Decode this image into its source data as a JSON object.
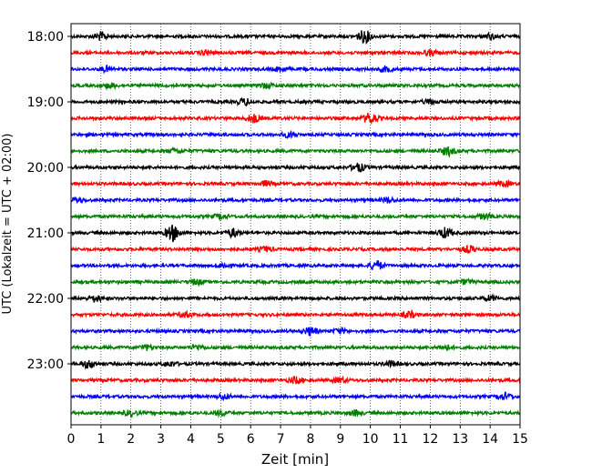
{
  "chart_data": {
    "type": "line",
    "title": "",
    "xlabel": "Zeit  [min]",
    "ylabel": "UTC (Lokalzeit = UTC + 02:00)",
    "xlim": [
      0,
      15
    ],
    "x_ticks": [
      "0",
      "1",
      "2",
      "3",
      "4",
      "5",
      "6",
      "7",
      "8",
      "9",
      "10",
      "11",
      "12",
      "13",
      "14",
      "15"
    ],
    "y_ticks": [
      "18:00",
      "19:00",
      "20:00",
      "21:00",
      "22:00",
      "23:00"
    ],
    "grid": "vertical dotted",
    "colors": [
      "#000000",
      "#ff0000",
      "#0000ff",
      "#008000"
    ],
    "traces": [
      {
        "start": "18:00",
        "color": "#000000",
        "events": [
          [
            1.0,
            0.5
          ],
          [
            9.8,
            0.8
          ],
          [
            14.0,
            0.3
          ]
        ]
      },
      {
        "start": "18:15",
        "color": "#ff0000",
        "events": [
          [
            4.5,
            0.3
          ],
          [
            12.0,
            0.3
          ]
        ]
      },
      {
        "start": "18:30",
        "color": "#0000ff",
        "events": [
          [
            1.2,
            0.3
          ],
          [
            7.0,
            0.3
          ],
          [
            10.5,
            0.3
          ]
        ]
      },
      {
        "start": "18:45",
        "color": "#008000",
        "events": [
          [
            1.3,
            0.3
          ],
          [
            6.5,
            0.3
          ]
        ]
      },
      {
        "start": "19:00",
        "color": "#000000",
        "events": [
          [
            5.8,
            0.4
          ],
          [
            12.0,
            0.3
          ]
        ]
      },
      {
        "start": "19:15",
        "color": "#ff0000",
        "events": [
          [
            6.1,
            0.5
          ],
          [
            10.0,
            0.7
          ]
        ]
      },
      {
        "start": "19:30",
        "color": "#0000ff",
        "events": [
          [
            7.3,
            0.3
          ]
        ]
      },
      {
        "start": "19:45",
        "color": "#008000",
        "events": [
          [
            12.6,
            0.5
          ],
          [
            3.5,
            0.3
          ]
        ]
      },
      {
        "start": "20:00",
        "color": "#000000",
        "events": [
          [
            9.6,
            0.5
          ]
        ]
      },
      {
        "start": "20:15",
        "color": "#ff0000",
        "events": [
          [
            6.5,
            0.3
          ],
          [
            14.5,
            0.3
          ]
        ]
      },
      {
        "start": "20:30",
        "color": "#0000ff",
        "events": [
          [
            0.2,
            0.3
          ],
          [
            10.6,
            0.3
          ]
        ]
      },
      {
        "start": "20:45",
        "color": "#008000",
        "events": [
          [
            5.0,
            0.3
          ],
          [
            13.8,
            0.3
          ]
        ]
      },
      {
        "start": "21:00",
        "color": "#000000",
        "events": [
          [
            3.4,
            1.0
          ],
          [
            5.4,
            0.5
          ],
          [
            12.5,
            0.6
          ]
        ]
      },
      {
        "start": "21:15",
        "color": "#ff0000",
        "events": [
          [
            13.3,
            0.4
          ],
          [
            6.5,
            0.3
          ]
        ]
      },
      {
        "start": "21:30",
        "color": "#0000ff",
        "events": [
          [
            10.2,
            0.6
          ],
          [
            5.1,
            0.3
          ]
        ]
      },
      {
        "start": "21:45",
        "color": "#008000",
        "events": [
          [
            4.2,
            0.3
          ],
          [
            13.2,
            0.3
          ]
        ]
      },
      {
        "start": "22:00",
        "color": "#000000",
        "events": [
          [
            0.8,
            0.4
          ],
          [
            14.0,
            0.3
          ]
        ]
      },
      {
        "start": "22:15",
        "color": "#ff0000",
        "events": [
          [
            11.3,
            0.4
          ],
          [
            3.8,
            0.3
          ]
        ]
      },
      {
        "start": "22:30",
        "color": "#0000ff",
        "events": [
          [
            8.0,
            0.5
          ],
          [
            9.0,
            0.3
          ]
        ]
      },
      {
        "start": "22:45",
        "color": "#008000",
        "events": [
          [
            2.5,
            0.3
          ],
          [
            4.2,
            0.3
          ],
          [
            12.5,
            0.3
          ]
        ]
      },
      {
        "start": "23:00",
        "color": "#000000",
        "events": [
          [
            0.6,
            0.5
          ],
          [
            3.3,
            0.3
          ],
          [
            10.7,
            0.3
          ]
        ]
      },
      {
        "start": "23:15",
        "color": "#ff0000",
        "events": [
          [
            7.5,
            0.4
          ],
          [
            9.0,
            0.3
          ]
        ]
      },
      {
        "start": "23:30",
        "color": "#0000ff",
        "events": [
          [
            5.1,
            0.3
          ],
          [
            14.5,
            0.4
          ]
        ]
      },
      {
        "start": "23:45",
        "color": "#008000",
        "events": [
          [
            2.0,
            0.3
          ],
          [
            5.0,
            0.3
          ],
          [
            9.5,
            0.3
          ]
        ]
      }
    ]
  }
}
